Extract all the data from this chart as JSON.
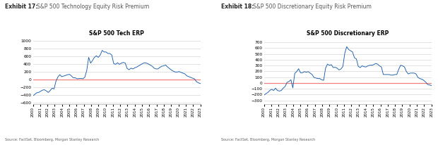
{
  "chart1": {
    "title": "S&P 500 Tech ERP",
    "exhibit_bold": "Exhibit 17:",
    "exhibit_text": "  S&P 500 Technology Equity Risk Premium",
    "yticks": [
      -600,
      -400,
      -200,
      0,
      200,
      400,
      600,
      800,
      1000
    ],
    "ylim": [
      -650,
      1080
    ],
    "source": "Source: FactSet, Bloomberg, Morgan Stanley Research"
  },
  "chart2": {
    "title": "S&P 500 Discretionary ERP",
    "exhibit_bold": "Exhibit 18:",
    "exhibit_text": "  S&P 500 Discretionary Equity Risk Premium",
    "yticks": [
      -300,
      -200,
      -100,
      0,
      100,
      200,
      300,
      400,
      500,
      600,
      700
    ],
    "ylim": [
      -370,
      780
    ],
    "source": "Source: FactSet, Bloomberg, Morgan Stanley Research"
  },
  "xtick_years": [
    "2000",
    "2001",
    "2002",
    "2003",
    "2004",
    "2005",
    "2006",
    "2007",
    "2008",
    "2009",
    "2010",
    "2011",
    "2012",
    "2013",
    "2014",
    "2015",
    "2016",
    "2017",
    "2018",
    "2019",
    "2020",
    "2021",
    "2022",
    "2023"
  ],
  "line_color": "#1a5ca8",
  "zero_line_color": "#f08080",
  "background_color": "#ffffff",
  "grid_color": "#cccccc",
  "tech_erp": [
    -430,
    -390,
    -350,
    -340,
    -310,
    -280,
    -270,
    -300,
    -340,
    -290,
    -230,
    -250,
    -50,
    60,
    120,
    70,
    85,
    100,
    120,
    130,
    90,
    40,
    40,
    15,
    20,
    25,
    15,
    55,
    230,
    570,
    420,
    490,
    570,
    610,
    570,
    630,
    750,
    710,
    710,
    670,
    670,
    630,
    410,
    390,
    430,
    390,
    420,
    440,
    420,
    280,
    250,
    290,
    270,
    300,
    320,
    350,
    380,
    410,
    430,
    420,
    400,
    370,
    340,
    290,
    270,
    270,
    310,
    340,
    350,
    370,
    320,
    280,
    240,
    210,
    190,
    190,
    200,
    180,
    160,
    140,
    90,
    70,
    50,
    30,
    10,
    -60,
    -90,
    -110
  ],
  "disc_erp": [
    -210,
    -185,
    -165,
    -130,
    -110,
    -130,
    -90,
    -130,
    -140,
    -130,
    -90,
    -60,
    10,
    25,
    55,
    -85,
    165,
    195,
    245,
    175,
    175,
    195,
    185,
    195,
    170,
    145,
    95,
    85,
    75,
    75,
    55,
    45,
    255,
    325,
    305,
    315,
    265,
    270,
    255,
    225,
    240,
    285,
    515,
    625,
    575,
    555,
    535,
    435,
    415,
    285,
    265,
    295,
    280,
    275,
    295,
    305,
    305,
    315,
    335,
    325,
    295,
    275,
    145,
    145,
    145,
    145,
    135,
    135,
    145,
    145,
    235,
    305,
    295,
    275,
    195,
    155,
    170,
    170,
    170,
    155,
    95,
    75,
    65,
    45,
    15,
    -25,
    -35,
    -45
  ]
}
